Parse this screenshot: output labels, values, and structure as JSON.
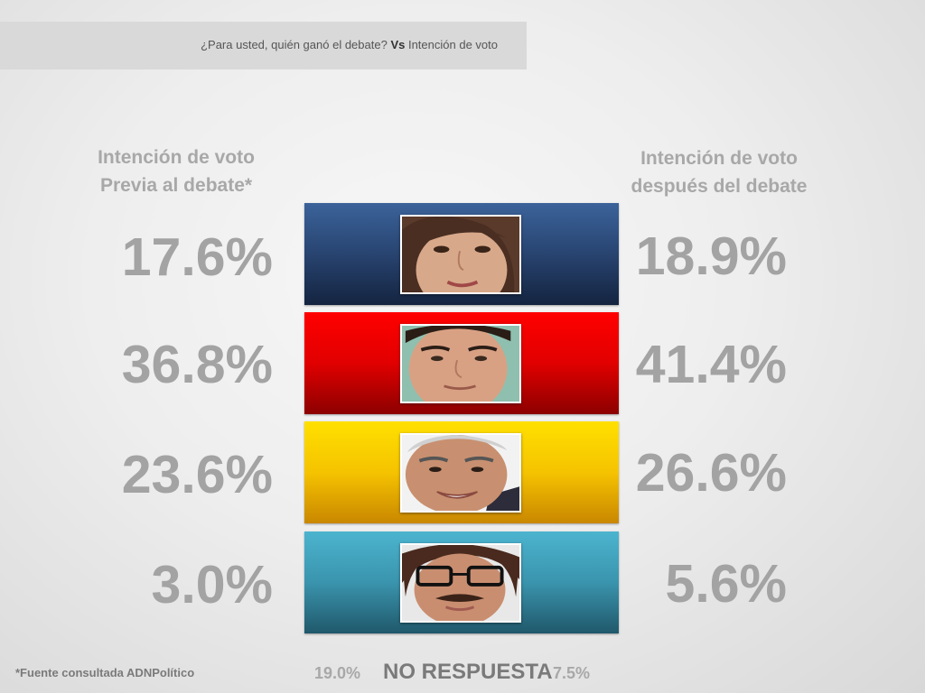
{
  "header": {
    "question": "¿Para usted, quién ganó el debate?",
    "vs": "Vs",
    "subject": "Intención de voto"
  },
  "left_column": {
    "title_line1": "Intención de voto",
    "title_line2": "Previa al debate*"
  },
  "right_column": {
    "title_line1": "Intención de voto",
    "title_line2": "después del debate"
  },
  "candidates": [
    {
      "color": "#2a4775",
      "before": "17.6%",
      "after": "18.9%",
      "icon": "candidate-photo-woman"
    },
    {
      "color": "#e10000",
      "before": "36.8%",
      "after": "41.4%",
      "icon": "candidate-photo-man"
    },
    {
      "color": "#f5c300",
      "before": "23.6%",
      "after": "26.6%",
      "icon": "candidate-photo-older-man"
    },
    {
      "color": "#3a94ad",
      "before": "3.0%",
      "after": "5.6%",
      "icon": "candidate-photo-glasses-man"
    }
  ],
  "no_response": {
    "label": "NO RESPUESTA",
    "before": "19.0%",
    "after": "7.5%"
  },
  "footnote": "*Fuente consultada ADNPolítico"
}
